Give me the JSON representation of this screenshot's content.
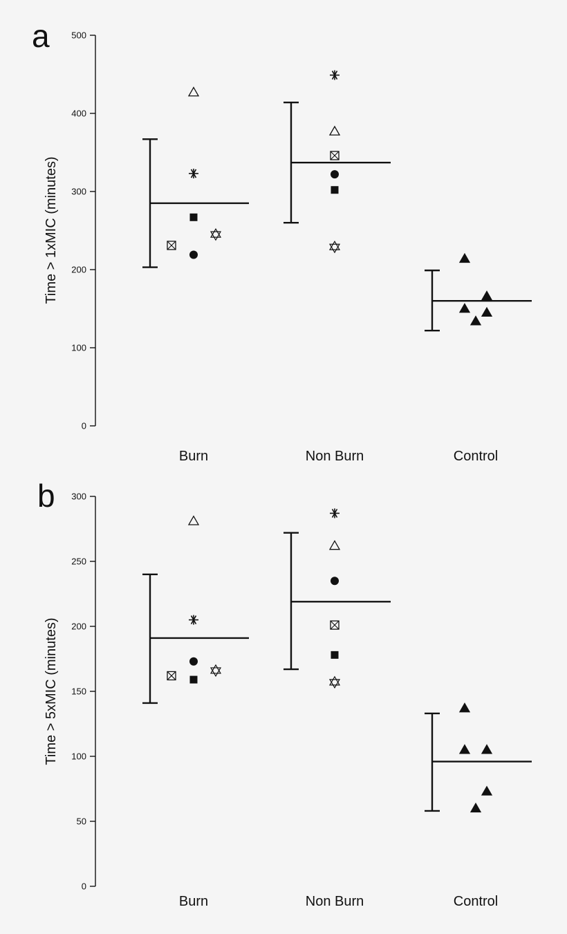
{
  "colors": {
    "ink": "#111111",
    "background": "#f5f5f5"
  },
  "chart_data": [
    {
      "type": "scatter",
      "panel_label": "a",
      "ylabel": "Time > 1xMIC (minutes)",
      "ylim": [
        0,
        500
      ],
      "yticks": [
        0,
        100,
        200,
        300,
        400,
        500
      ],
      "categories": [
        "Burn",
        "Non Burn",
        "Control"
      ],
      "summary": [
        {
          "category": "Burn",
          "mean": 285,
          "lower": 203,
          "upper": 367
        },
        {
          "category": "Non Burn",
          "mean": 337,
          "lower": 260,
          "upper": 414
        },
        {
          "category": "Control",
          "mean": 160,
          "lower": 122,
          "upper": 199
        }
      ],
      "points": [
        {
          "category": "Burn",
          "marker": "open-triangle",
          "value": 427
        },
        {
          "category": "Burn",
          "marker": "asterisk",
          "value": 323
        },
        {
          "category": "Burn",
          "marker": "filled-square",
          "value": 267
        },
        {
          "category": "Burn",
          "marker": "boxed-x",
          "value": 231
        },
        {
          "category": "Burn",
          "marker": "star-of-david",
          "value": 245
        },
        {
          "category": "Burn",
          "marker": "filled-circle",
          "value": 219
        },
        {
          "category": "Non Burn",
          "marker": "asterisk",
          "value": 449
        },
        {
          "category": "Non Burn",
          "marker": "open-triangle",
          "value": 377
        },
        {
          "category": "Non Burn",
          "marker": "boxed-x",
          "value": 346
        },
        {
          "category": "Non Burn",
          "marker": "filled-circle",
          "value": 322
        },
        {
          "category": "Non Burn",
          "marker": "filled-square",
          "value": 302
        },
        {
          "category": "Non Burn",
          "marker": "star-of-david",
          "value": 229
        },
        {
          "category": "Control",
          "marker": "filled-triangle",
          "value": 214
        },
        {
          "category": "Control",
          "marker": "filled-triangle",
          "value": 166
        },
        {
          "category": "Control",
          "marker": "filled-triangle",
          "value": 150
        },
        {
          "category": "Control",
          "marker": "filled-triangle",
          "value": 145
        },
        {
          "category": "Control",
          "marker": "filled-triangle",
          "value": 134
        }
      ]
    },
    {
      "type": "scatter",
      "panel_label": "b",
      "ylabel": "Time > 5xMIC (minutes)",
      "ylim": [
        0,
        300
      ],
      "yticks": [
        0,
        50,
        100,
        150,
        200,
        250,
        300
      ],
      "categories": [
        "Burn",
        "Non Burn",
        "Control"
      ],
      "summary": [
        {
          "category": "Burn",
          "mean": 191,
          "lower": 141,
          "upper": 240
        },
        {
          "category": "Non Burn",
          "mean": 219,
          "lower": 167,
          "upper": 272
        },
        {
          "category": "Control",
          "mean": 96,
          "lower": 58,
          "upper": 133
        }
      ],
      "points": [
        {
          "category": "Burn",
          "marker": "open-triangle",
          "value": 281
        },
        {
          "category": "Burn",
          "marker": "asterisk",
          "value": 205
        },
        {
          "category": "Burn",
          "marker": "filled-circle",
          "value": 173
        },
        {
          "category": "Burn",
          "marker": "boxed-x",
          "value": 162
        },
        {
          "category": "Burn",
          "marker": "star-of-david",
          "value": 166
        },
        {
          "category": "Burn",
          "marker": "filled-square",
          "value": 159
        },
        {
          "category": "Non Burn",
          "marker": "asterisk",
          "value": 287
        },
        {
          "category": "Non Burn",
          "marker": "open-triangle",
          "value": 262
        },
        {
          "category": "Non Burn",
          "marker": "filled-circle",
          "value": 235
        },
        {
          "category": "Non Burn",
          "marker": "boxed-x",
          "value": 201
        },
        {
          "category": "Non Burn",
          "marker": "filled-square",
          "value": 178
        },
        {
          "category": "Non Burn",
          "marker": "star-of-david",
          "value": 157
        },
        {
          "category": "Control",
          "marker": "filled-triangle",
          "value": 137
        },
        {
          "category": "Control",
          "marker": "filled-triangle",
          "value": 105
        },
        {
          "category": "Control",
          "marker": "filled-triangle",
          "value": 105
        },
        {
          "category": "Control",
          "marker": "filled-triangle",
          "value": 73
        },
        {
          "category": "Control",
          "marker": "filled-triangle",
          "value": 60
        }
      ]
    }
  ]
}
